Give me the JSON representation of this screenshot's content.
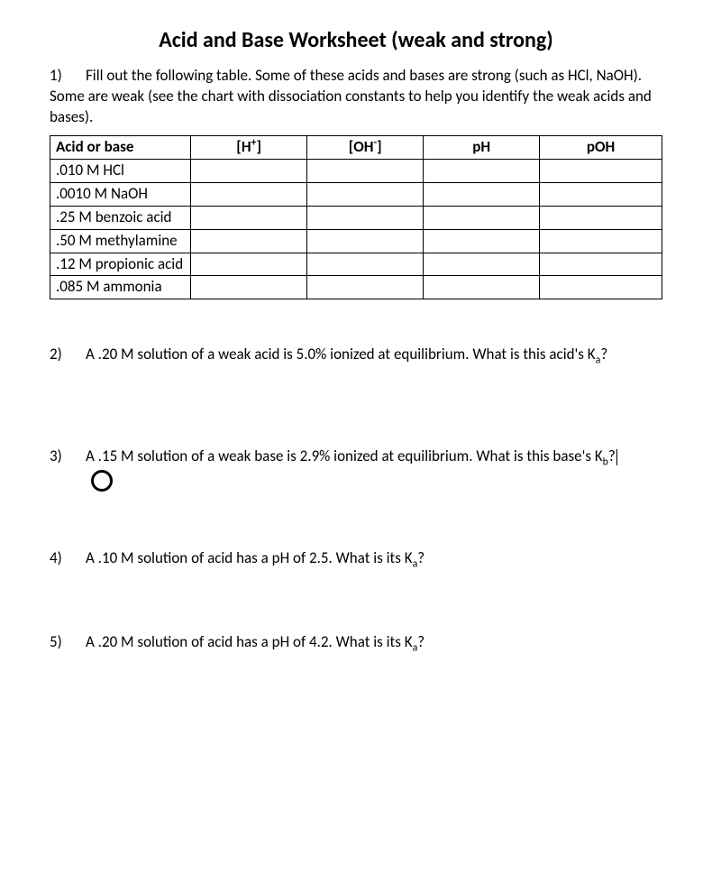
{
  "title": "Acid and Base Worksheet (weak and strong)",
  "q1": {
    "num": "1)",
    "text": "Fill out the following table.  Some of these acids and bases are strong (such as HCl, NaOH).  Some are weak (see the chart with dissociation constants to help you identify the weak acids and bases)."
  },
  "table": {
    "headers": {
      "c1": "Acid or base",
      "c2_pre": "[H",
      "c2_sup": "+",
      "c2_post": "]",
      "c3_pre": "[OH",
      "c3_sup": "-",
      "c3_post": "]",
      "c4": "pH",
      "c5": "pOH"
    },
    "rows": [
      ".010 M HCl",
      ".0010 M NaOH",
      ".25 M benzoic acid",
      ".50 M methylamine",
      ".12 M propionic acid",
      ".085 M ammonia"
    ]
  },
  "q2": {
    "num": "2)",
    "pre": "A .20 M solution of a weak acid is 5.0% ionized at equilibrium.  What is this acid's K",
    "sub": "a",
    "post": "?"
  },
  "q3": {
    "num": "3)",
    "pre": "A .15 M solution of a weak base is 2.9% ionized at equilibrium.  What is this base's K",
    "sub": "b",
    "post": "?"
  },
  "q4": {
    "num": "4)",
    "pre": "A .10 M solution of acid has a pH of 2.5.  What is its K",
    "sub": "a",
    "post": "?"
  },
  "q5": {
    "num": "5)",
    "pre": "A .20 M solution of acid has a pH of 4.2.  What is its K",
    "sub": "a",
    "post": "?"
  }
}
